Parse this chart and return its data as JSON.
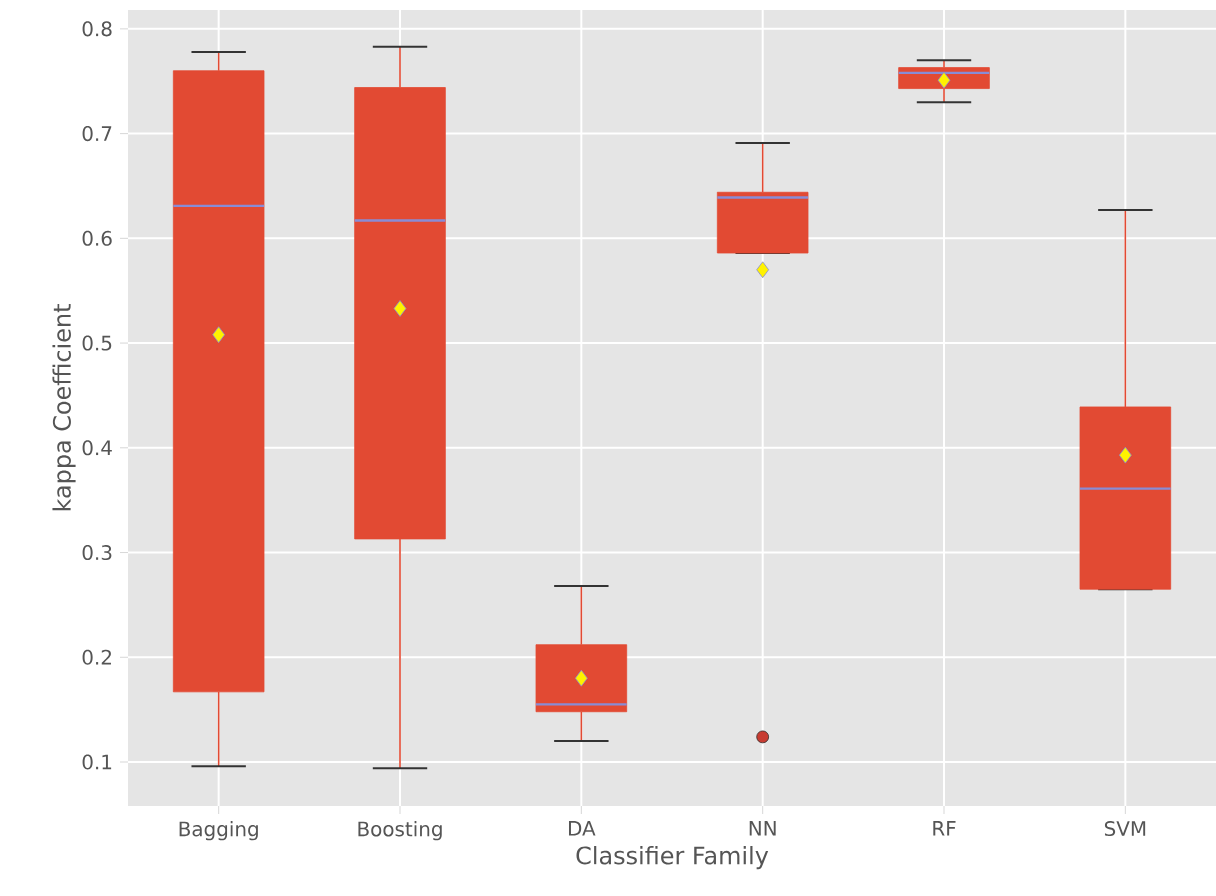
{
  "chart_data": {
    "type": "box",
    "xlabel": "Classifier Family",
    "ylabel": "kappa Coefficient",
    "categories": [
      "Bagging",
      "Boosting",
      "DA",
      "NN",
      "RF",
      "SVM"
    ],
    "color": "#e24a33",
    "boxes": [
      {
        "low": 0.096,
        "q1": 0.167,
        "median": 0.631,
        "q3": 0.76,
        "high": 0.778,
        "mean": 0.508
      },
      {
        "low": 0.094,
        "q1": 0.313,
        "median": 0.617,
        "q3": 0.744,
        "high": 0.783,
        "mean": 0.533
      },
      {
        "low": 0.12,
        "q1": 0.148,
        "median": 0.155,
        "q3": 0.212,
        "high": 0.268,
        "mean": 0.18
      },
      {
        "low": 0.586,
        "q1": 0.586,
        "median": 0.639,
        "q3": 0.644,
        "high": 0.691,
        "mean": 0.57,
        "outliers": [
          0.124
        ]
      },
      {
        "low": 0.73,
        "q1": 0.743,
        "median": 0.758,
        "q3": 0.763,
        "high": 0.77,
        "mean": 0.751
      },
      {
        "low": 0.265,
        "q1": 0.265,
        "median": 0.361,
        "q3": 0.439,
        "high": 0.627,
        "mean": 0.393
      }
    ],
    "ylim": [
      0.058,
      0.818
    ],
    "yticks": [
      0.1,
      0.2,
      0.3,
      0.4,
      0.5,
      0.6,
      0.7,
      0.8
    ],
    "grid": true
  }
}
